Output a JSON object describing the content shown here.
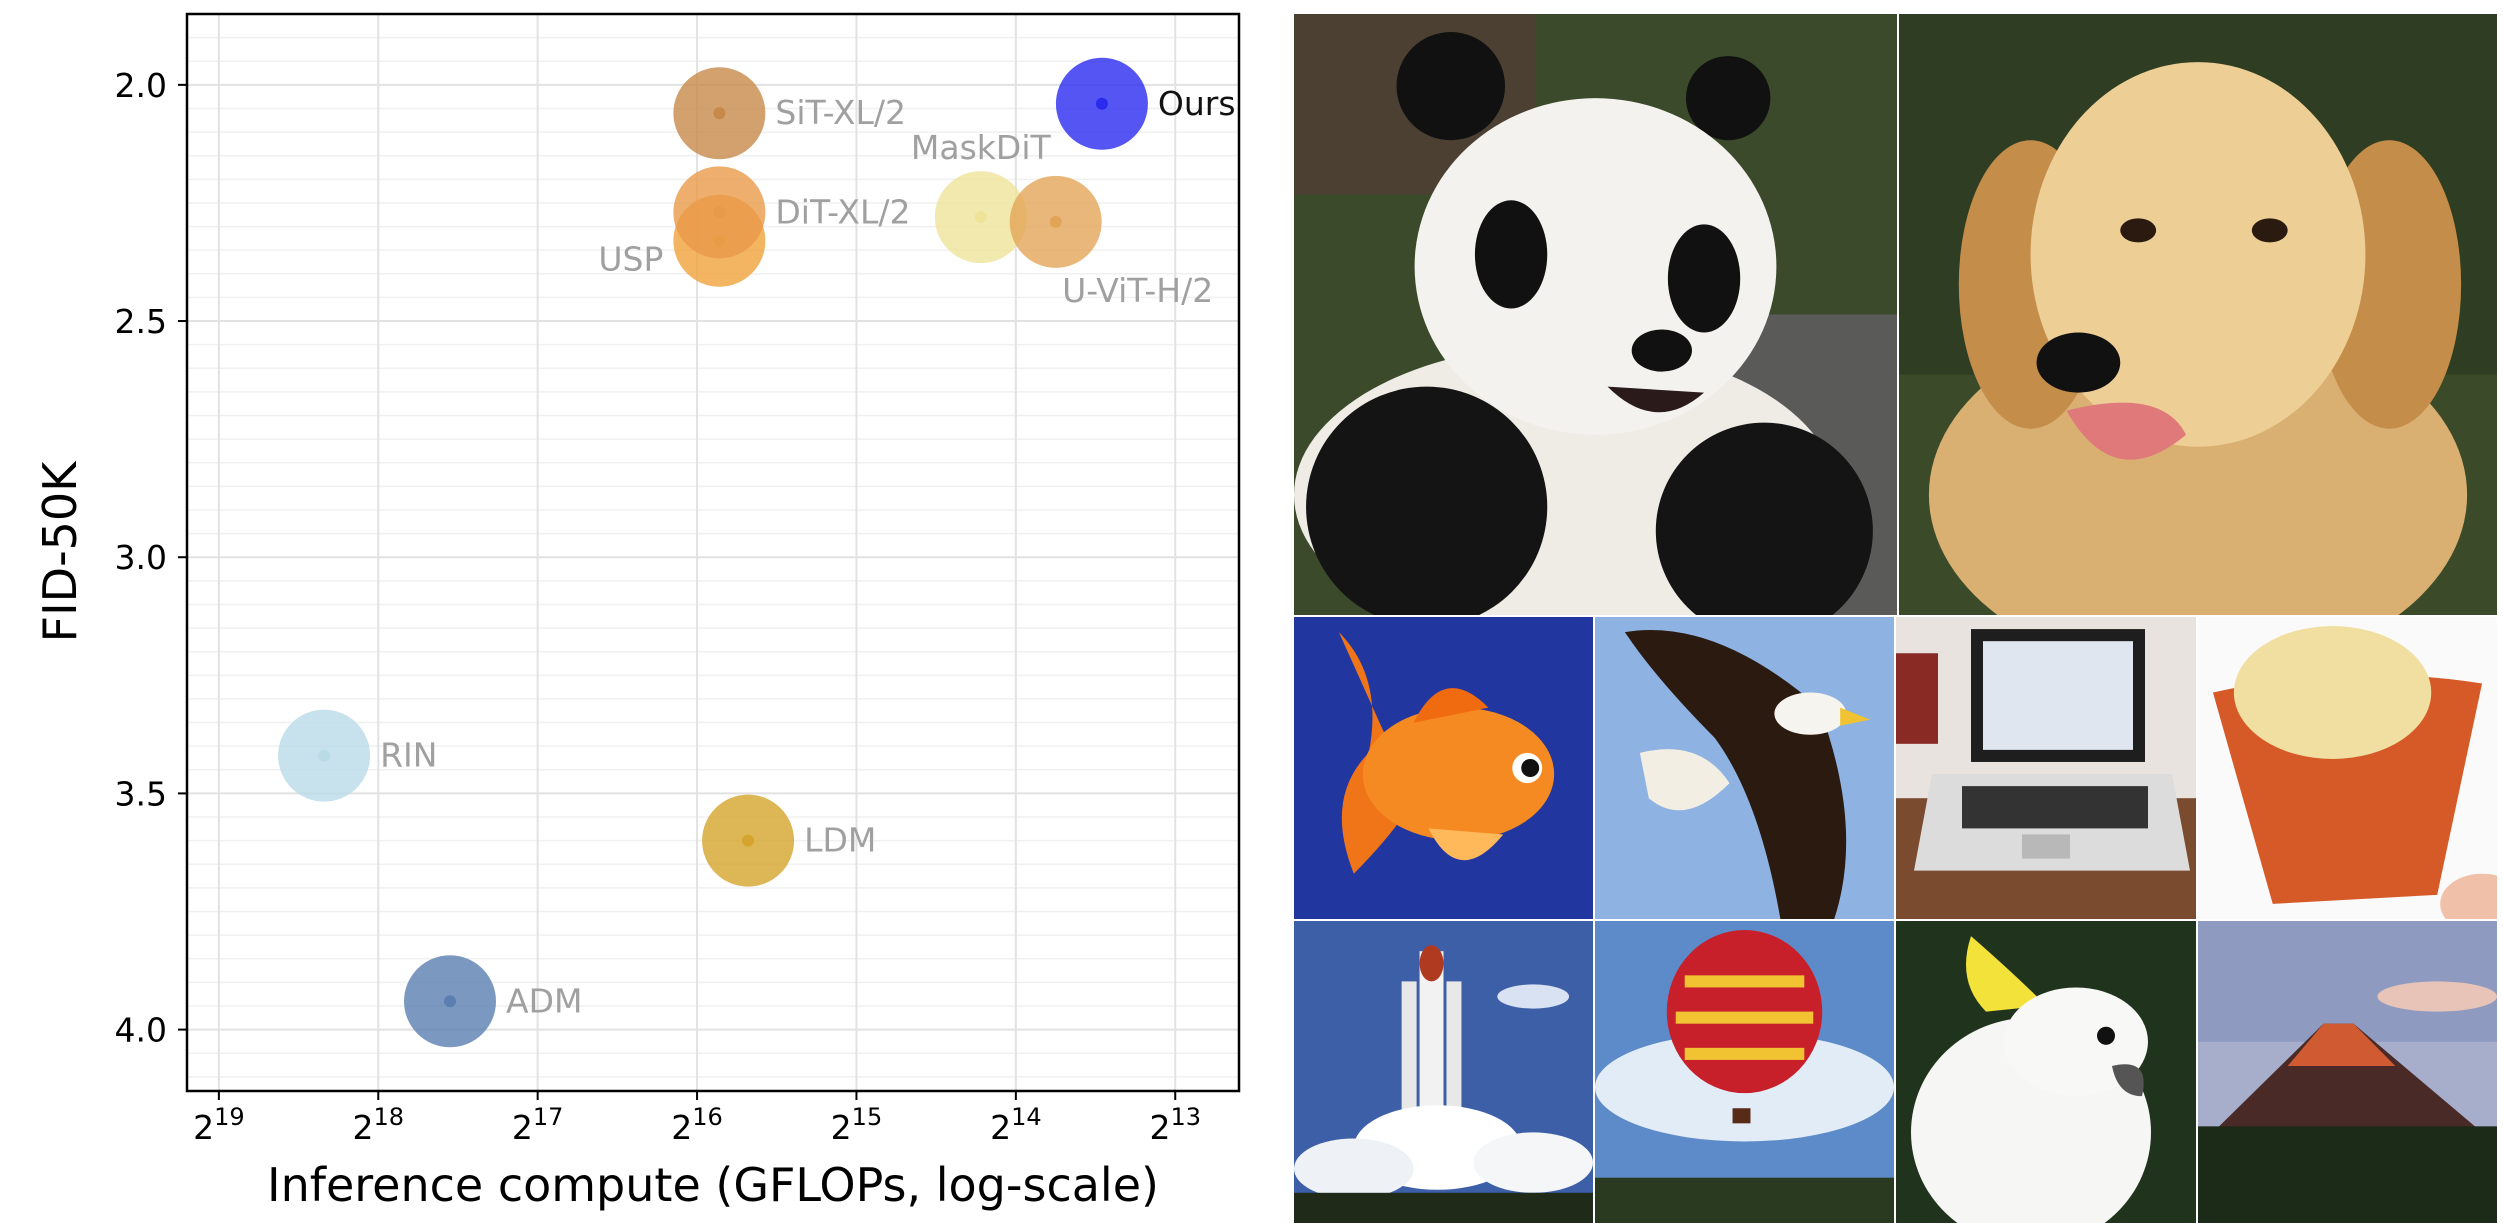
{
  "chart_data": {
    "type": "bubble-scatter",
    "xlabel": "Inference compute (GFLOPs, log-scale)",
    "ylabel": "FID-50K",
    "x_scale": "log2",
    "x_reversed": true,
    "y_reversed": true,
    "xlim": [
      19.2,
      12.6
    ],
    "ylim": [
      1.85,
      4.13
    ],
    "x_ticks": [
      {
        "exp": 19,
        "base": "2",
        "sup": "19"
      },
      {
        "exp": 18,
        "base": "2",
        "sup": "18"
      },
      {
        "exp": 17,
        "base": "2",
        "sup": "17"
      },
      {
        "exp": 16,
        "base": "2",
        "sup": "16"
      },
      {
        "exp": 15,
        "base": "2",
        "sup": "15"
      },
      {
        "exp": 14,
        "base": "2",
        "sup": "14"
      },
      {
        "exp": 13,
        "base": "2",
        "sup": "13"
      }
    ],
    "y_ticks": [
      {
        "v": 2.0,
        "label": "2.0"
      },
      {
        "v": 2.5,
        "label": "2.5"
      },
      {
        "v": 3.0,
        "label": "3.0"
      },
      {
        "v": 3.5,
        "label": "3.5"
      },
      {
        "v": 4.0,
        "label": "4.0"
      }
    ],
    "grid": true,
    "points": [
      {
        "name": "ADM",
        "log2_gflops": 17.55,
        "fid": 3.94,
        "color": "#5a7fb0",
        "label_side": "right",
        "label_color": "#a0a0a0"
      },
      {
        "name": "RIN",
        "log2_gflops": 18.34,
        "fid": 3.42,
        "color": "#b9dbe8",
        "label_side": "right",
        "label_color": "#a0a0a0"
      },
      {
        "name": "LDM",
        "log2_gflops": 15.68,
        "fid": 3.6,
        "color": "#d4a42c",
        "label_side": "right",
        "label_color": "#a0a0a0"
      },
      {
        "name": "USP",
        "log2_gflops": 15.86,
        "fid": 2.33,
        "color": "#f0a23a",
        "label_side": "left",
        "label_color": "#a0a0a0"
      },
      {
        "name": "DiT-XL/2",
        "log2_gflops": 15.86,
        "fid": 2.27,
        "color": "#e89a4a",
        "label_side": "right",
        "label_color": "#a0a0a0"
      },
      {
        "name": "SiT-XL/2",
        "log2_gflops": 15.86,
        "fid": 2.06,
        "color": "#c7894a",
        "label_side": "right",
        "label_color": "#a0a0a0"
      },
      {
        "name": "MaskDiT",
        "log2_gflops": 14.22,
        "fid": 2.28,
        "color": "#efe39a",
        "label_side": "top",
        "label_color": "#a0a0a0"
      },
      {
        "name": "U-ViT-H/2",
        "log2_gflops": 13.75,
        "fid": 2.29,
        "color": "#e2a558",
        "label_side": "bottom",
        "label_color": "#a0a0a0"
      },
      {
        "name": "Ours",
        "log2_gflops": 13.46,
        "fid": 2.04,
        "color": "#2b2bf0",
        "label_side": "right",
        "label_color": "#111111"
      }
    ]
  },
  "gallery": {
    "images": [
      {
        "subject": "panda",
        "colors": [
          "#2a3a1c",
          "#f2f0ec",
          "#111111"
        ]
      },
      {
        "subject": "golden-retriever",
        "colors": [
          "#2e3a1e",
          "#e8c88c",
          "#c9954f"
        ]
      },
      {
        "subject": "goldfish",
        "colors": [
          "#2238a0",
          "#f07a18",
          "#ffb24a"
        ]
      },
      {
        "subject": "bald-eagle",
        "colors": [
          "#8fb3e3",
          "#2a1a10",
          "#f4f1ea"
        ]
      },
      {
        "subject": "laptop",
        "colors": [
          "#e9e4df",
          "#262626",
          "#8a5a38"
        ]
      },
      {
        "subject": "ice-cream-cone",
        "colors": [
          "#fafafa",
          "#f1dfa2",
          "#d65a28"
        ]
      },
      {
        "subject": "space-shuttle-launch",
        "colors": [
          "#3c5fa8",
          "#ffffff",
          "#f0a040"
        ]
      },
      {
        "subject": "hot-air-balloon",
        "colors": [
          "#3f6fb4",
          "#c8202a",
          "#f1c232"
        ]
      },
      {
        "subject": "cockatoo",
        "colors": [
          "#20351e",
          "#f6f6f4",
          "#f2e23a"
        ]
      },
      {
        "subject": "volcano",
        "colors": [
          "#9ea7c4",
          "#c8502e",
          "#1c2a18"
        ]
      }
    ]
  }
}
